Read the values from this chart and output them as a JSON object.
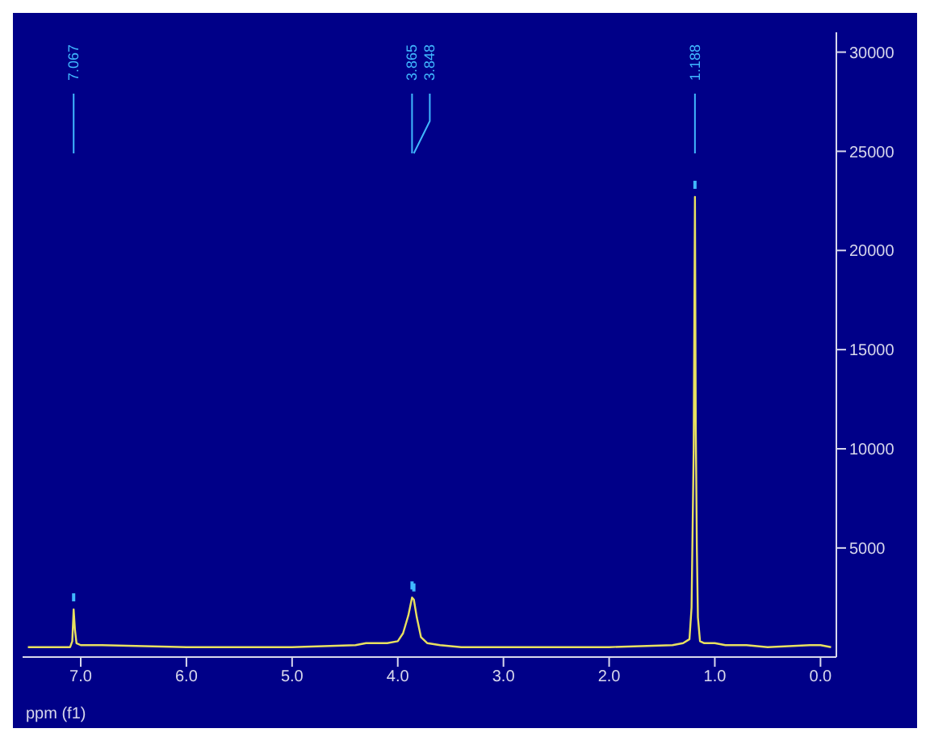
{
  "chart_data": {
    "type": "line",
    "xlabel": "ppm (f1)",
    "x": [
      7.5,
      7.2,
      7.1,
      7.08,
      7.067,
      7.055,
      7.04,
      7.0,
      6.8,
      6.0,
      5.0,
      4.4,
      4.3,
      4.1,
      4.0,
      3.95,
      3.9,
      3.865,
      3.848,
      3.82,
      3.78,
      3.72,
      3.6,
      3.4,
      2.0,
      1.4,
      1.3,
      1.24,
      1.22,
      1.2,
      1.188,
      1.18,
      1.17,
      1.16,
      1.14,
      1.1,
      1.0,
      0.9,
      0.7,
      0.5,
      0.1,
      0.0,
      -0.1
    ],
    "series": [
      {
        "color": "#e8e060",
        "values": [
          0,
          0,
          0,
          300,
          1900,
          900,
          200,
          100,
          100,
          0,
          0,
          100,
          200,
          200,
          300,
          700,
          1600,
          2500,
          2400,
          1500,
          500,
          200,
          100,
          0,
          0,
          100,
          200,
          400,
          2000,
          10000,
          22700,
          11000,
          5000,
          1500,
          300,
          200,
          200,
          100,
          100,
          0,
          100,
          100,
          0
        ]
      }
    ],
    "xlim": [
      7.55,
      -0.15
    ],
    "ylim": [
      -500,
      31000
    ],
    "xticks": [
      {
        "value": 7,
        "label": "7.0"
      },
      {
        "value": 6,
        "label": "6.0"
      },
      {
        "value": 5,
        "label": "5.0"
      },
      {
        "value": 4,
        "label": "4.0"
      },
      {
        "value": 3,
        "label": "3.0"
      },
      {
        "value": 2,
        "label": "2.0"
      },
      {
        "value": 1,
        "label": "1.0"
      },
      {
        "value": 0,
        "label": "0.0"
      }
    ],
    "yticks": [
      5000,
      10000,
      15000,
      20000,
      25000,
      30000
    ],
    "annotations": [
      {
        "text": "7.067",
        "x": 7.067
      },
      {
        "text": "3.865",
        "x": 3.865
      },
      {
        "text": "3.848",
        "x": 3.848
      },
      {
        "text": "1.188",
        "x": 1.188
      }
    ],
    "grid": false,
    "legend": false,
    "marker": "none",
    "line_style": "solid"
  }
}
